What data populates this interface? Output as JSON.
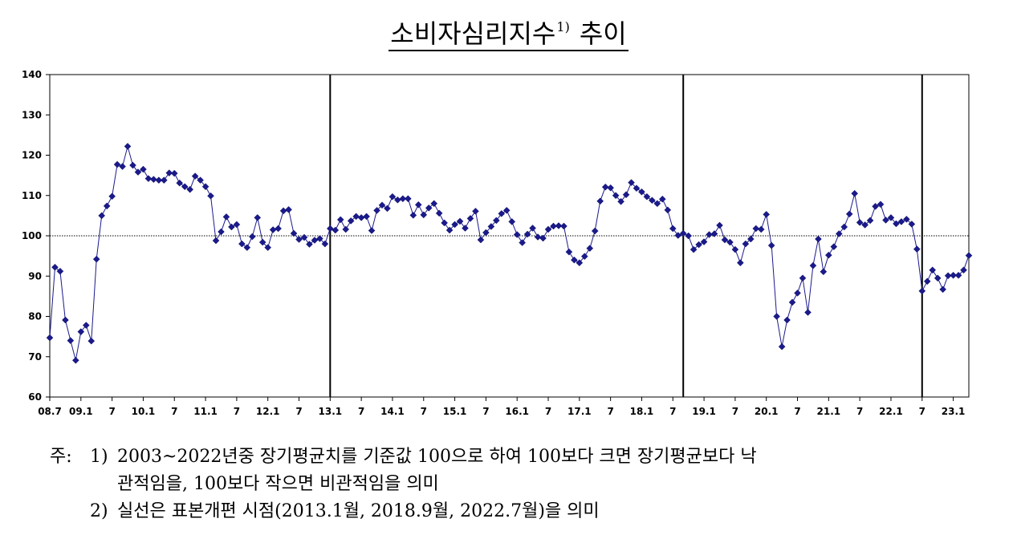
{
  "title": {
    "main": "소비자심리지수",
    "sup": "1)",
    "tail": "추이"
  },
  "notes": {
    "prefix": "주:",
    "n1_num": "1)",
    "n1_line1": "2003~2022년중 장기평균치를 기준값 100으로 하여 100보다 크면 장기평균보다 낙",
    "n1_line2": "관적임을, 100보다 작으면 비관적임을 의미",
    "n2_num": "2)",
    "n2_text": "실선은 표본개편 시점(2013.1월, 2018.9월, 2022.7월)을 의미"
  },
  "chart_data": {
    "type": "line",
    "x_start": "2008.7",
    "x_end": "2023.4",
    "x_tick_labels": [
      "08.7",
      "09.1",
      "7",
      "10.1",
      "7",
      "11.1",
      "7",
      "12.1",
      "7",
      "13.1",
      "7",
      "14.1",
      "7",
      "15.1",
      "7",
      "16.1",
      "7",
      "17.1",
      "7",
      "18.1",
      "7",
      "19.1",
      "7",
      "20.1",
      "7",
      "21.1",
      "7",
      "22.1",
      "7",
      "23.1"
    ],
    "ylim": [
      60,
      140
    ],
    "y_ticks": [
      "60",
      "70",
      "80",
      "90",
      "100",
      "110",
      "120",
      "130",
      "140"
    ],
    "reference_line": 100,
    "reference_style": "dotted",
    "sample_revision_lines": [
      "2013.1",
      "2018.9",
      "2022.7"
    ],
    "marker": "diamond",
    "color": "#1a1a8c",
    "series": [
      {
        "values": [
          74.7,
          92.2,
          91.2,
          79.1,
          74.0,
          69.1,
          76.2,
          77.8,
          73.9,
          94.2,
          105.0,
          107.4,
          109.8,
          117.7,
          117.2,
          122.2,
          117.5,
          115.8,
          116.5,
          114.2,
          114.0,
          113.8,
          113.8,
          115.6,
          115.5,
          113.1,
          112.2,
          111.5,
          114.8,
          113.8,
          112.2,
          109.9,
          98.8,
          101.0,
          104.7,
          102.2,
          102.8,
          98.0,
          97.1,
          99.8,
          104.5,
          98.4,
          97.1,
          101.5,
          101.8,
          106.2,
          106.5,
          100.6,
          99.1,
          99.6,
          97.9,
          98.9,
          99.3,
          98.0,
          101.8,
          101.4,
          104.0,
          101.6,
          103.7,
          104.8,
          104.5,
          104.8,
          101.3,
          106.3,
          107.6,
          106.8,
          109.7,
          108.9,
          109.2,
          109.2,
          105.1,
          107.7,
          105.2,
          106.9,
          108.0,
          105.6,
          103.2,
          101.4,
          102.8,
          103.6,
          101.9,
          104.3,
          106.1,
          99.0,
          100.8,
          102.3,
          103.8,
          105.5,
          106.3,
          103.5,
          100.3,
          98.3,
          100.4,
          101.9,
          99.7,
          99.4,
          101.6,
          102.4,
          102.5,
          102.4,
          96.0,
          94.0,
          93.3,
          94.9,
          96.9,
          101.2,
          108.6,
          112.1,
          111.9,
          110.0,
          108.5,
          110.2,
          113.2,
          111.8,
          110.9,
          109.7,
          108.8,
          108.0,
          109.1,
          106.4,
          101.8,
          100.1,
          100.6,
          100.0,
          96.6,
          97.8,
          98.5,
          100.3,
          100.5,
          102.6,
          99.0,
          98.4,
          96.6,
          93.3,
          98.0,
          99.2,
          101.8,
          101.6,
          105.3,
          97.6,
          80.0,
          72.5,
          79.1,
          83.5,
          85.8,
          89.5,
          81.0,
          92.6,
          99.2,
          91.1,
          95.2,
          97.3,
          100.5,
          102.2,
          105.4,
          110.5,
          103.3,
          102.7,
          103.8,
          107.3,
          107.8,
          103.9,
          104.5,
          103.0,
          103.5,
          104.1,
          102.9,
          96.7,
          86.3,
          88.7,
          91.5,
          89.5,
          86.7,
          90.1,
          90.2,
          90.2,
          91.5,
          95.1
        ]
      }
    ]
  }
}
